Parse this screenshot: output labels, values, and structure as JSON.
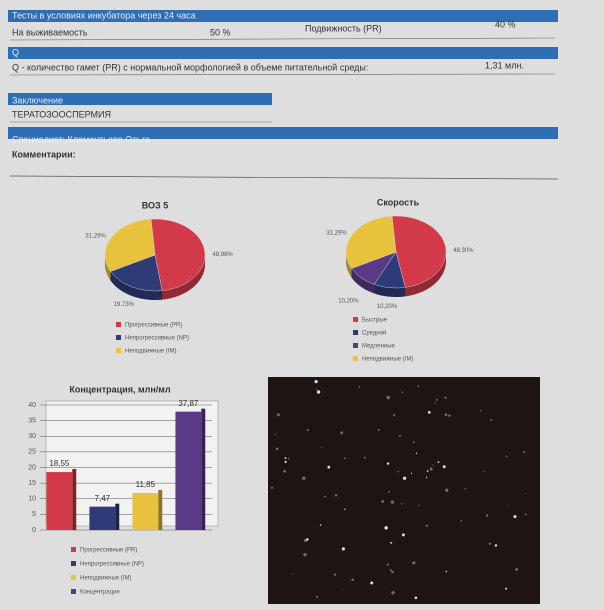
{
  "incubator": {
    "title": "Тесты в условиях инкубатора через 24 часа",
    "survival_label": "На выживаемость",
    "survival_value": "50 %",
    "motility_label": "Подвижность (PR)",
    "motility_value": "40 %"
  },
  "q": {
    "title": "Q",
    "text": "Q - количество гамет (PR) с нормальной морфологией в объеме питательной среды:",
    "value": "1,31 млн."
  },
  "conclusion": {
    "title": "Заключение",
    "text": "ТЕРАТОЗООСПЕРМИЯ"
  },
  "specialist": "Специалист: Клементьева Ольга",
  "comments": "Комментарии:",
  "chart_data": [
    {
      "type": "pie",
      "title": "ВОЗ 5",
      "categories": [
        "Прогрессивные (PR)",
        "Непрогрессивные (NP)",
        "Неподвижные (IM)"
      ],
      "values": [
        48.98,
        19.73,
        31.29
      ],
      "value_labels": [
        "48,98%",
        "19,73%",
        "31,29%"
      ],
      "colors": [
        "#d23a4a",
        "#2f3a78",
        "#e8c23c"
      ]
    },
    {
      "type": "pie",
      "title": "Скорость",
      "categories": [
        "Быстрые",
        "Средний",
        "Медленные",
        "Неподвижные (IM)"
      ],
      "values": [
        48.3,
        10.2,
        10.2,
        31.29
      ],
      "value_labels": [
        "48,30%",
        "10,20%",
        "10,20%",
        "31,29%"
      ],
      "colors": [
        "#d23a4a",
        "#2f3a78",
        "#5a3a86",
        "#e8c23c"
      ]
    },
    {
      "type": "bar",
      "title": "Концентрация, млн/мл",
      "categories": [
        "Прогрессивные (PR)",
        "Непрогрессивные (NP)",
        "Неподвижные (IM)",
        "Концентрация"
      ],
      "values": [
        18.55,
        7.47,
        11.85,
        37.87
      ],
      "value_labels": [
        "18,55",
        "7,47",
        "11,85",
        "37,87"
      ],
      "colors": [
        "#d23a4a",
        "#2f3a78",
        "#e8c23c",
        "#5a3a86"
      ],
      "ylim": [
        0,
        40
      ],
      "yticks": [
        0,
        5,
        10,
        15,
        20,
        25,
        30,
        35,
        40
      ],
      "grid": true
    }
  ]
}
